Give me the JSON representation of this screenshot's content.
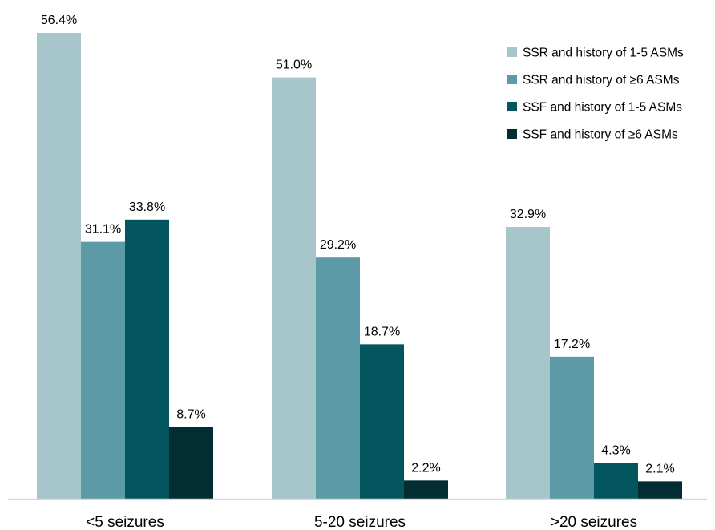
{
  "chart_data": {
    "type": "bar",
    "categories": [
      "<5 seizures",
      "5-20 seizures",
      ">20 seizures"
    ],
    "series": [
      {
        "name": "SSR and history of 1-5 ASMs",
        "color": "#a6c6cc",
        "values": [
          56.4,
          51.0,
          32.9
        ],
        "labels": [
          "56.4%",
          "51.0%",
          "32.9%"
        ]
      },
      {
        "name": "SSR and history of ≥6 ASMs",
        "color": "#5b9aa6",
        "values": [
          31.1,
          29.2,
          17.2
        ],
        "labels": [
          "31.1%",
          "29.2%",
          "17.2%"
        ]
      },
      {
        "name": "SSF and history of 1-5 ASMs",
        "color": "#04565e",
        "values": [
          33.8,
          18.7,
          4.3
        ],
        "labels": [
          "33.8%",
          "18.7%",
          "4.3%"
        ]
      },
      {
        "name": "SSF and history of ≥6 ASMs",
        "color": "#022e33",
        "values": [
          8.7,
          2.2,
          2.1
        ],
        "labels": [
          "8.7%",
          "2.2%",
          "2.1%"
        ]
      }
    ],
    "ylim": [
      0,
      56.4
    ],
    "grid": false,
    "legend_position": "top-right",
    "title": "",
    "xlabel": "",
    "ylabel": ""
  }
}
